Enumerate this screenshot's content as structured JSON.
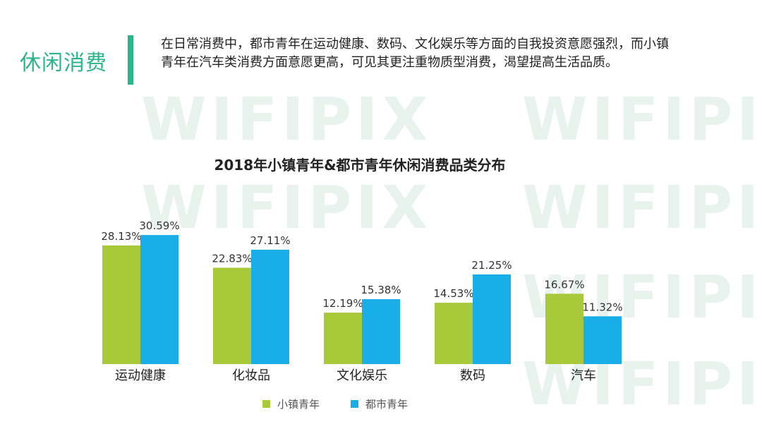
{
  "header": {
    "section_title": "休闲消费",
    "intro": "在日常消费中，都市青年在运动健康、数码、文化娱乐等方面的自我投资意愿强烈，而小镇青年在汽车类消费方面意愿更高，可见其更注重物质型消费，渴望提高生活品质。"
  },
  "watermark": {
    "text": "WIFIPIX"
  },
  "colors": {
    "accent": "#2bb58a",
    "small_town": "#a8c93a",
    "urban": "#1aaee8"
  },
  "chart_data": {
    "type": "bar",
    "title": "2018年小镇青年&都市青年休闲消费品类分布",
    "categories": [
      "运动健康",
      "化妆品",
      "文化娱乐",
      "数码",
      "汽车"
    ],
    "series": [
      {
        "name": "小镇青年",
        "values": [
          28.13,
          22.83,
          12.19,
          14.53,
          16.67
        ],
        "labels": [
          "28.13%",
          "22.83%",
          "12.19%",
          "14.53%",
          "16.67%"
        ]
      },
      {
        "name": "都市青年",
        "values": [
          30.59,
          27.11,
          15.38,
          21.25,
          11.32
        ],
        "labels": [
          "30.59%",
          "27.11%",
          "15.38%",
          "21.25%",
          "11.32%"
        ]
      }
    ],
    "legend_position": "bottom",
    "grid": false
  }
}
